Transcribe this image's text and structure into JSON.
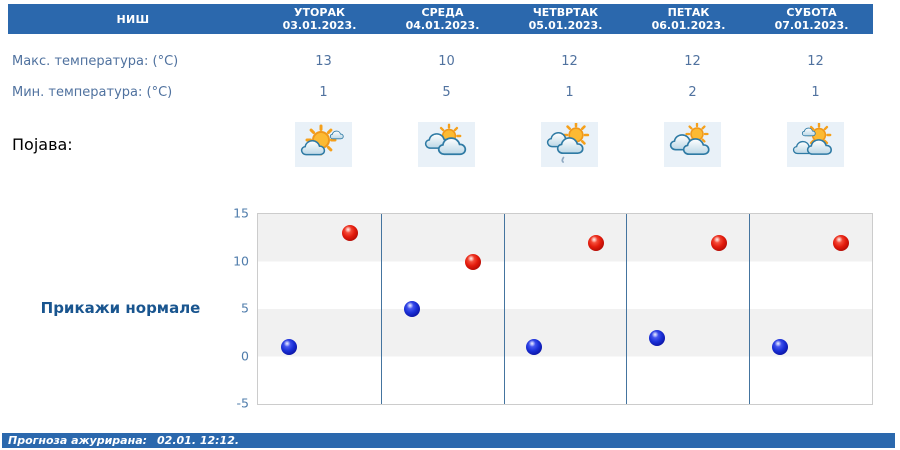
{
  "header": {
    "location": "НИШ"
  },
  "days": [
    {
      "name": "УТОРАК",
      "date": "03.01.2023.",
      "max": 13,
      "min": 1,
      "icon": "mostly-sunny-icon"
    },
    {
      "name": "СРЕДА",
      "date": "04.01.2023.",
      "max": 10,
      "min": 5,
      "icon": "mostly-cloudy-sun-icon"
    },
    {
      "name": "ЧЕТВРТАК",
      "date": "05.01.2023.",
      "max": 12,
      "min": 1,
      "icon": "cloudy-sun-light-rain-icon"
    },
    {
      "name": "ПЕТАК",
      "date": "06.01.2023.",
      "max": 12,
      "min": 2,
      "icon": "mostly-cloudy-sun-icon"
    },
    {
      "name": "СУБОТА",
      "date": "07.01.2023.",
      "max": 12,
      "min": 1,
      "icon": "partly-cloudy-icon"
    }
  ],
  "row_labels": {
    "max": "Макс. температура: (°C)",
    "min": "Мин. температура: (°C)",
    "phenomenon": "Појава:"
  },
  "normals_button_label": "Прикажи нормале",
  "footer": {
    "label": "Прогноза ажурирана:",
    "value": "02.01. 12:12."
  },
  "colors": {
    "bar_blue": "#2b68ad",
    "max_dot_red": "#cc0000",
    "min_dot_blue": "#0000cc",
    "band_gray": "#f1f1f1",
    "separator_blue": "#44749f"
  },
  "chart_data": {
    "type": "scatter",
    "categories": [
      "УТОРАК 03.01.2023.",
      "СРЕДА 04.01.2023.",
      "ЧЕТВРТАК 05.01.2023.",
      "ПЕТАК 06.01.2023.",
      "СУБОТА 07.01.2023."
    ],
    "series": [
      {
        "name": "Макс. температура (°C)",
        "color": "#cc0000",
        "values": [
          13,
          10,
          12,
          12,
          12
        ]
      },
      {
        "name": "Мин. температура (°C)",
        "color": "#0000cc",
        "values": [
          1,
          5,
          1,
          2,
          1
        ]
      }
    ],
    "ylim": [
      -5,
      15
    ],
    "yticks": [
      15,
      10,
      5,
      0,
      -5
    ],
    "grid": "horizontal-bands",
    "legend": "none"
  }
}
